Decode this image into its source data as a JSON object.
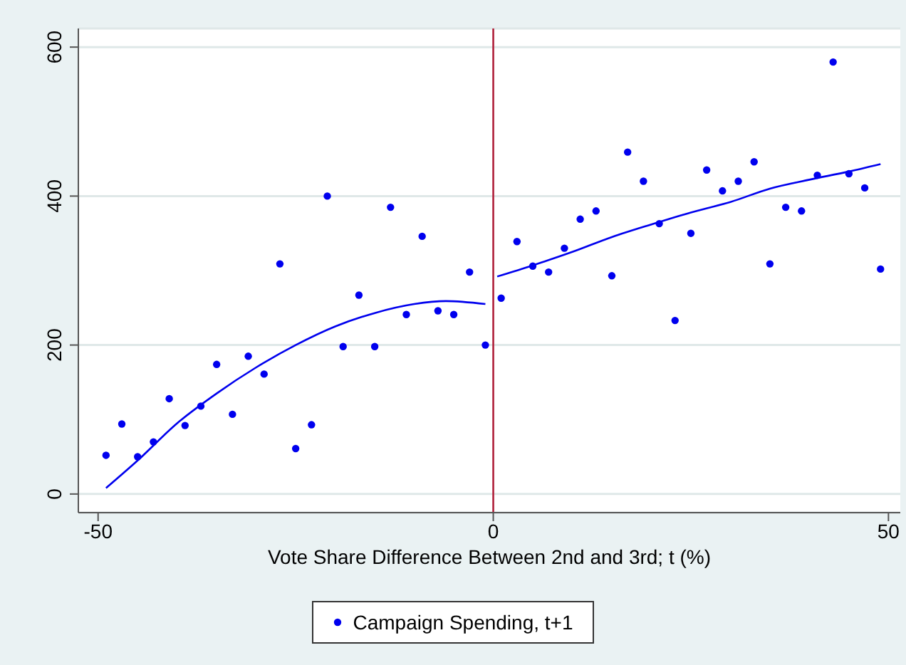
{
  "chart_data": {
    "type": "scatter",
    "xlabel": "Vote Share Difference Between 2nd and 3rd; t (%)",
    "xlim": [
      -52.5,
      51.5
    ],
    "xticks": [
      -50,
      0,
      50
    ],
    "ylim": [
      -25,
      625
    ],
    "yticks": [
      0,
      200,
      400,
      600
    ],
    "grid": "y",
    "legend": "bottom",
    "ref_lines": [
      {
        "axis": "x",
        "value": 0,
        "color": "#b0203a"
      }
    ],
    "series": [
      {
        "name": "Campaign Spending, t+1",
        "marker": "circle",
        "color": "#0000ee",
        "x": [
          -49,
          -47,
          -45,
          -43,
          -41,
          -39,
          -37,
          -35,
          -33,
          -31,
          -29,
          -27,
          -25,
          -23,
          -21,
          -19,
          -17,
          -15,
          -13,
          -11,
          -9,
          -7,
          -5,
          -3,
          -1,
          1,
          3,
          5,
          7,
          9,
          11,
          13,
          15,
          17,
          19,
          21,
          23,
          25,
          27,
          29,
          31,
          33,
          35,
          37,
          39,
          41,
          43,
          45,
          47,
          49
        ],
        "values": [
          52,
          94,
          50,
          70,
          128,
          92,
          118,
          174,
          107,
          185,
          161,
          309,
          61,
          93,
          400,
          198,
          267,
          198,
          385,
          241,
          346,
          246,
          241,
          298,
          200,
          263,
          339,
          306,
          298,
          330,
          369,
          380,
          293,
          459,
          420,
          363,
          233,
          350,
          435,
          407,
          420,
          446,
          309,
          385,
          380,
          428,
          580,
          430,
          411,
          302
        ]
      },
      {
        "type": "line",
        "marker": "none",
        "color": "#0000ee",
        "x": [
          -49,
          -45,
          -40,
          -35,
          -30,
          -25,
          -20,
          -15,
          -10,
          -6,
          -1
        ],
        "values": [
          8,
          45,
          95,
          135,
          170,
          200,
          225,
          243,
          255,
          259,
          255
        ]
      },
      {
        "type": "line",
        "marker": "none",
        "color": "#0000ee",
        "x": [
          0.5,
          5,
          10,
          15,
          20,
          25,
          30,
          35,
          40,
          45,
          49
        ],
        "values": [
          292,
          307,
          325,
          345,
          362,
          378,
          392,
          410,
          422,
          433,
          443
        ]
      }
    ]
  }
}
